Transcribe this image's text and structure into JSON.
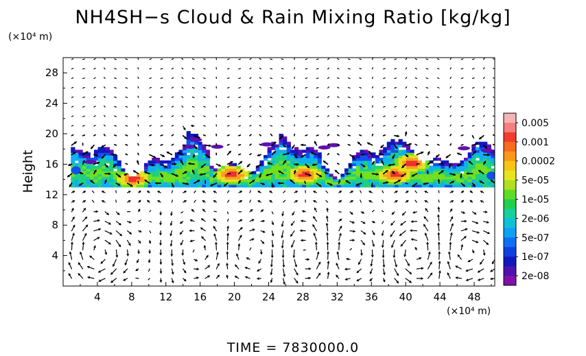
{
  "chart_data": {
    "type": "heatmap",
    "title": "NH4SH−s Cloud & Rain Mixing Ratio [kg/kg]",
    "ylabel": "Height",
    "x_unit": "(×10⁴ m)",
    "y_unit": "(×10⁴ m)",
    "xlim": [
      0,
      50.4
    ],
    "ylim": [
      0,
      30
    ],
    "x_ticks": [
      4,
      8,
      12,
      16,
      20,
      24,
      28,
      32,
      36,
      40,
      44,
      48
    ],
    "y_ticks": [
      4,
      8,
      12,
      16,
      20,
      24,
      28
    ],
    "colorbar": {
      "labels": [
        "0.005",
        "0.001",
        "0.0002",
        "5e-05",
        "1e-05",
        "2e-06",
        "5e-07",
        "1e-07",
        "2e-08"
      ],
      "colors": [
        "#f4a0a0",
        "#f03030",
        "#f8a020",
        "#e8e020",
        "#70e020",
        "#20d080",
        "#10b0f0",
        "#1050f0",
        "#6010b0"
      ]
    },
    "cloud_layer": {
      "base_height": 13,
      "top_height_range": [
        15.5,
        19.5
      ],
      "peak_value_kg_kg": 0.001,
      "cores": [
        {
          "x": 8,
          "y": 14
        },
        {
          "x": 19.5,
          "y": 14.5
        },
        {
          "x": 28,
          "y": 14.5
        },
        {
          "x": 38.5,
          "y": 14.5
        },
        {
          "x": 40.5,
          "y": 16
        }
      ]
    },
    "wind_vectors": "present"
  },
  "time_label": "TIME  =  7830000.0"
}
